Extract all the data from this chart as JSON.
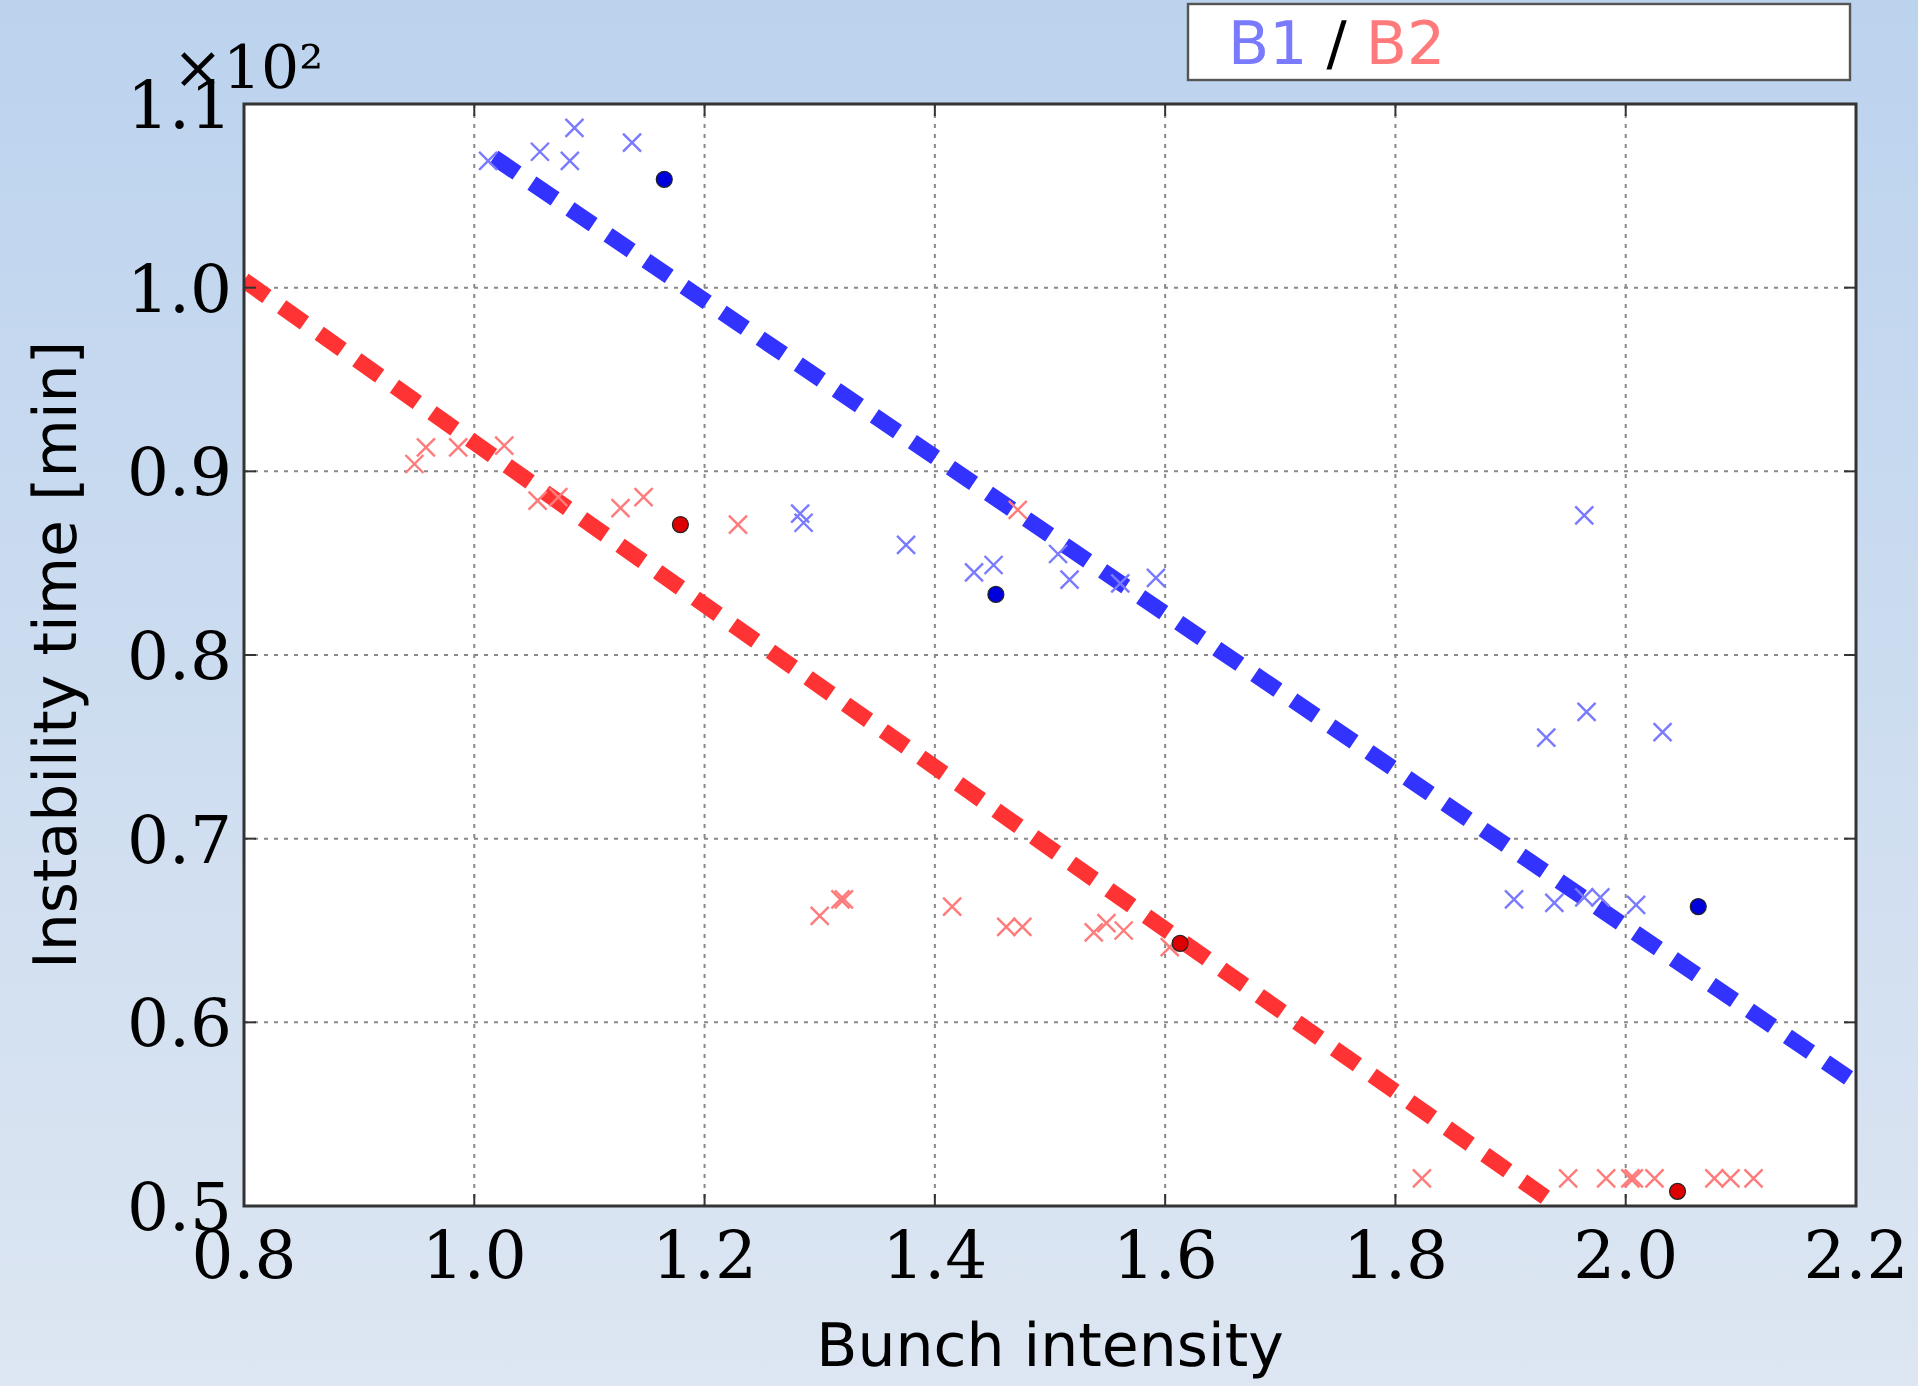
{
  "chart_data": {
    "type": "scatter",
    "xlabel": "Bunch intensity",
    "ylabel": "Instability time [min]",
    "annotations": [
      "×10²",
      "/"
    ],
    "xlim": [
      0.8,
      2.2
    ],
    "xticks": [
      {
        "value": 0.8,
        "label": "0.8"
      },
      {
        "value": 1.0,
        "label": "1.0"
      },
      {
        "value": 1.2,
        "label": "1.2"
      },
      {
        "value": 1.4,
        "label": "1.4"
      },
      {
        "value": 1.6,
        "label": "1.6"
      },
      {
        "value": 1.8,
        "label": "1.8"
      },
      {
        "value": 2.0,
        "label": "2.0"
      },
      {
        "value": 2.2,
        "label": "2.2"
      }
    ],
    "ylim": [
      0.5,
      1.1
    ],
    "yticks": [
      {
        "value": 0.5,
        "label": "0.5"
      },
      {
        "value": 0.6,
        "label": "0.6"
      },
      {
        "value": 0.7,
        "label": "0.7"
      },
      {
        "value": 0.8,
        "label": "0.8"
      },
      {
        "value": 0.9,
        "label": "0.9"
      },
      {
        "value": 1.0,
        "label": "1.0"
      },
      {
        "value": 1.1,
        "label": "1.1"
      }
    ],
    "grid": true,
    "legend": "top right",
    "series": [
      {
        "name": "B1",
        "marker": "cross",
        "color": "#7a7aff",
        "x": [
          1.012,
          1.057,
          1.087,
          1.083,
          1.137,
          1.283,
          1.286,
          1.375,
          1.434,
          1.451,
          1.507,
          1.517,
          1.561,
          1.592,
          1.903,
          1.938,
          1.964,
          1.978,
          2.009,
          1.964,
          1.931,
          1.966,
          2.032
        ],
        "values": [
          1.069,
          1.074,
          1.087,
          1.069,
          1.079,
          0.877,
          0.872,
          0.86,
          0.845,
          0.849,
          0.855,
          0.841,
          0.839,
          0.842,
          0.667,
          0.665,
          0.668,
          0.668,
          0.664,
          0.876,
          0.755,
          0.769,
          0.758
        ]
      },
      {
        "name": "B2",
        "marker": "cross",
        "color": "#ff7a7a",
        "x": [
          0.948,
          0.958,
          0.986,
          1.026,
          1.055,
          1.073,
          1.127,
          1.147,
          1.229,
          1.472,
          1.3,
          1.318,
          1.321,
          1.415,
          1.462,
          1.476,
          1.538,
          1.549,
          1.564,
          1.604,
          1.823,
          1.95,
          1.983,
          2.004,
          2.007,
          2.025,
          2.077,
          2.091,
          2.111
        ],
        "values": [
          0.904,
          0.913,
          0.913,
          0.914,
          0.884,
          0.886,
          0.88,
          0.886,
          0.871,
          0.879,
          0.658,
          0.667,
          0.667,
          0.663,
          0.652,
          0.652,
          0.649,
          0.654,
          0.65,
          0.641,
          0.515,
          0.515,
          0.515,
          0.515,
          0.515,
          0.515,
          0.515,
          0.515,
          0.515
        ]
      },
      {
        "marker": "circle",
        "color": "#0000dd",
        "x": [
          1.165,
          1.453,
          2.063
        ],
        "values": [
          1.059,
          0.833,
          0.663
        ]
      },
      {
        "marker": "circle",
        "color": "#dd0000",
        "x": [
          1.179,
          1.613,
          2.045
        ],
        "values": [
          0.871,
          0.643,
          0.508
        ]
      },
      {
        "type": "line",
        "line_style": "dashed",
        "color": "#3333ff",
        "x": [
          1.017,
          2.2
        ],
        "values": [
          1.071,
          0.567
        ]
      },
      {
        "type": "line",
        "line_style": "dashed",
        "color": "#ff3333",
        "x": [
          0.8,
          1.941
        ],
        "values": [
          1.004,
          0.5
        ]
      }
    ]
  }
}
